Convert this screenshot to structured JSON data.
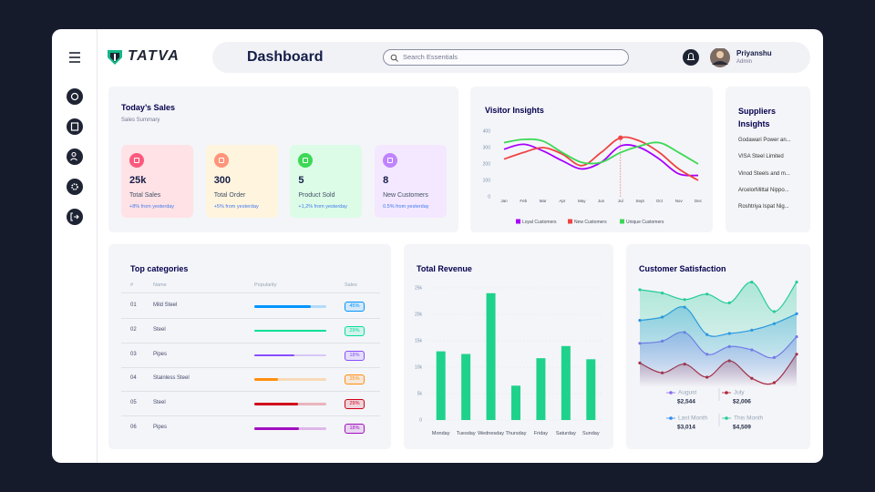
{
  "header": {
    "logo": "TATVA",
    "title": "Dashboard",
    "search_placeholder": "Search Essentials",
    "user_name": "Priyanshu",
    "user_role": "Admin"
  },
  "todays_sales": {
    "title": "Today’s Sales",
    "subtitle": "Sales Summary",
    "cards": [
      {
        "value": "25k",
        "label": "Total Sales",
        "change": "+8% from yesterday",
        "color": "#ffe2e5",
        "icon_color": "#fa5a7d"
      },
      {
        "value": "300",
        "label": "Total Order",
        "change": "+5% from yesterday",
        "color": "#fff4de",
        "icon_color": "#ff947a"
      },
      {
        "value": "5",
        "label": "Product Sold",
        "change": "+1,2% from yesterday",
        "color": "#dcfce7",
        "icon_color": "#3cd856"
      },
      {
        "value": "8",
        "label": "New Customers",
        "change": "0.5% from yesterday",
        "color": "#f3e8ff",
        "icon_color": "#bf83ff"
      }
    ]
  },
  "suppliers": {
    "title": "Suppliers Insights",
    "items": [
      "Godawari Power an...",
      "VISA Steel Limited",
      "Vinod Steels and m...",
      "ArcelorMittal Nippo...",
      "Roshtriya Ispat Nig..."
    ]
  },
  "top_categories": {
    "title": "Top categories",
    "columns": [
      "#",
      "Name",
      "Popularity",
      "Sales"
    ],
    "rows": [
      {
        "rank": "01",
        "name": "Mild Steel",
        "popularity": 78,
        "sales": "45%",
        "color": "#0095ff"
      },
      {
        "rank": "02",
        "name": "Steel",
        "popularity": 100,
        "sales": "29%",
        "color": "#00e096"
      },
      {
        "rank": "03",
        "name": "Pipes",
        "popularity": 56,
        "sales": "18%",
        "color": "#884dff"
      },
      {
        "rank": "04",
        "name": "Stainless Steel",
        "popularity": 33,
        "sales": "25%",
        "color": "#ff8f0d"
      },
      {
        "rank": "05",
        "name": "Steel",
        "popularity": 61,
        "sales": "29%",
        "color": "#d0021b"
      },
      {
        "rank": "06",
        "name": "Pipes",
        "popularity": 62,
        "sales": "18%",
        "color": "#a10fbf"
      }
    ]
  },
  "chart_data": [
    {
      "type": "line",
      "title": "Visitor Insights",
      "categories": [
        "Jan",
        "Feb",
        "Mar",
        "Apr",
        "May",
        "Jun",
        "Jul",
        "Sept",
        "Oct",
        "Nov",
        "Dec"
      ],
      "series": [
        {
          "name": "Loyal Customers",
          "color": "#a700ff",
          "values": [
            290,
            320,
            280,
            220,
            170,
            210,
            310,
            300,
            230,
            140,
            130
          ]
        },
        {
          "name": "New Customers",
          "color": "#ef4444",
          "values": [
            230,
            270,
            300,
            260,
            190,
            270,
            360,
            340,
            270,
            170,
            100
          ]
        },
        {
          "name": "Unique Customers",
          "color": "#3cd856",
          "values": [
            330,
            350,
            340,
            270,
            210,
            210,
            270,
            310,
            330,
            270,
            200
          ]
        }
      ],
      "ylim": [
        0,
        400
      ],
      "yticks": [
        0,
        100,
        200,
        300,
        400
      ],
      "grid": false,
      "legend": "bottom",
      "highlight_index": 6
    },
    {
      "type": "bar",
      "title": "Total Revenue",
      "categories": [
        "Monday",
        "Tuesday",
        "Wednesday",
        "Thursday",
        "Friday",
        "Saturday",
        "Sunday"
      ],
      "values": [
        13000,
        12500,
        24000,
        6500,
        11700,
        14000,
        11500
      ],
      "color": "#1fd28c",
      "ylim": [
        0,
        25000
      ],
      "yticks": [
        0,
        {
          "value": 5000,
          "label": "5k"
        },
        {
          "value": 10000,
          "label": "10k"
        },
        {
          "value": 15000,
          "label": "15k"
        },
        {
          "value": 20000,
          "label": "20k"
        },
        {
          "value": 25000,
          "label": "25k"
        }
      ],
      "grid": true
    },
    {
      "type": "area",
      "title": "Customer Satisfaction",
      "categories": [
        null,
        null,
        null,
        null,
        null,
        null,
        null,
        null
      ],
      "series": [
        {
          "name": "August",
          "color": "#8b6cf0",
          "total": "$2,544",
          "values": [
            36,
            38,
            46,
            26,
            33,
            30,
            23,
            42
          ]
        },
        {
          "name": "July",
          "color": "#b0223a",
          "total": "$2,006",
          "values": [
            18,
            9,
            17,
            5,
            20,
            4,
            0,
            26
          ]
        },
        {
          "name": "Last Month",
          "color": "#2d8cf0",
          "total": "$3,014",
          "values": [
            57,
            60,
            69,
            44,
            45,
            48,
            54,
            63
          ]
        },
        {
          "name": "This Month",
          "color": "#25cc98",
          "total": "$4,509",
          "values": [
            85,
            82,
            76,
            81,
            73,
            92,
            65,
            92
          ]
        }
      ],
      "ylim": [
        0,
        100
      ],
      "legend": "bottom"
    }
  ]
}
